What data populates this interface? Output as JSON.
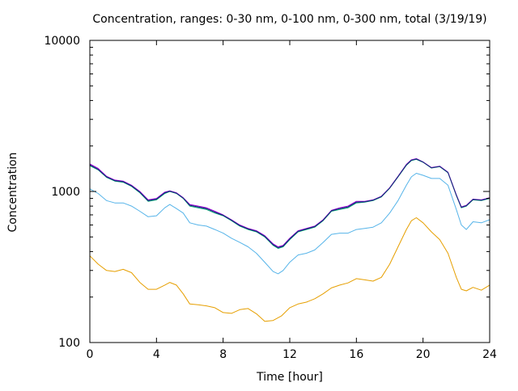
{
  "chart_data": {
    "type": "line",
    "title": "Concentration, ranges: 0-30 nm, 0-100 nm, 0-300 nm, total (3/19/19)",
    "xlabel": "Time [hour]",
    "ylabel": "Concentration",
    "xlim": [
      0,
      24
    ],
    "ylim": [
      100,
      10000
    ],
    "yscale": "log",
    "xticks": [
      0,
      4,
      8,
      12,
      16,
      20,
      24
    ],
    "yticks": [
      100,
      1000,
      10000
    ],
    "grid": false,
    "legend": "none",
    "series": [
      {
        "color": "#e69f00",
        "x": [
          0,
          0.5,
          1,
          1.5,
          2,
          2.5,
          3,
          3.5,
          4,
          4.5,
          4.8,
          5.2,
          5.6,
          6,
          6.5,
          7,
          7.5,
          8,
          8.5,
          9,
          9.5,
          10,
          10.5,
          11,
          11.5,
          12,
          12.5,
          13,
          13.5,
          14,
          14.5,
          15,
          15.5,
          16,
          16.5,
          17,
          17.5,
          18,
          18.5,
          19,
          19.3,
          19.6,
          20,
          20.5,
          21,
          21.5,
          22,
          22.3,
          22.6,
          23,
          23.5,
          24
        ],
        "values": [
          375,
          330,
          300,
          295,
          305,
          290,
          250,
          225,
          225,
          240,
          250,
          240,
          210,
          180,
          178,
          175,
          170,
          158,
          156,
          165,
          168,
          155,
          138,
          140,
          150,
          170,
          180,
          185,
          195,
          210,
          230,
          240,
          248,
          265,
          260,
          255,
          270,
          330,
          430,
          560,
          640,
          670,
          620,
          540,
          480,
          390,
          270,
          225,
          220,
          232,
          222,
          240
        ]
      },
      {
        "color": "#56b4e9",
        "x": [
          0,
          0.5,
          1,
          1.5,
          2,
          2.5,
          3,
          3.5,
          4,
          4.5,
          4.8,
          5.2,
          5.6,
          6,
          6.5,
          7,
          7.5,
          8,
          8.5,
          9,
          9.5,
          10,
          10.5,
          11,
          11.3,
          11.6,
          12,
          12.5,
          13,
          13.5,
          14,
          14.5,
          15,
          15.5,
          16,
          16.5,
          17,
          17.5,
          18,
          18.5,
          19,
          19.3,
          19.6,
          20,
          20.5,
          21,
          21.5,
          22,
          22.3,
          22.6,
          23,
          23.5,
          24
        ],
        "values": [
          1040,
          970,
          870,
          840,
          840,
          800,
          740,
          680,
          690,
          780,
          820,
          770,
          720,
          620,
          600,
          590,
          560,
          530,
          490,
          460,
          430,
          390,
          340,
          295,
          285,
          300,
          340,
          380,
          390,
          410,
          460,
          520,
          530,
          530,
          560,
          570,
          580,
          620,
          720,
          870,
          1100,
          1250,
          1320,
          1280,
          1220,
          1220,
          1100,
          760,
          600,
          560,
          630,
          620,
          650
        ]
      },
      {
        "color": "#009e73",
        "x": [
          0,
          0.5,
          1,
          1.5,
          2,
          2.5,
          3,
          3.5,
          4,
          4.5,
          4.8,
          5.2,
          5.6,
          6,
          6.5,
          7,
          7.5,
          8,
          8.5,
          9,
          9.5,
          10,
          10.5,
          11,
          11.3,
          11.6,
          12,
          12.5,
          13,
          13.5,
          14,
          14.5,
          15,
          15.5,
          16,
          16.5,
          17,
          17.5,
          18,
          18.5,
          19,
          19.3,
          19.6,
          20,
          20.5,
          21,
          21.5,
          22,
          22.3,
          22.6,
          23,
          23.5,
          24
        ],
        "values": [
          1480,
          1390,
          1240,
          1170,
          1150,
          1080,
          980,
          860,
          880,
          970,
          1000,
          970,
          900,
          800,
          780,
          760,
          720,
          690,
          640,
          590,
          560,
          540,
          500,
          440,
          420,
          430,
          480,
          540,
          560,
          580,
          640,
          740,
          760,
          780,
          840,
          850,
          870,
          920,
          1050,
          1250,
          1490,
          1600,
          1630,
          1560,
          1430,
          1460,
          1330,
          940,
          780,
          800,
          880,
          870,
          900
        ]
      },
      {
        "color": "#9400d3",
        "x": [
          0,
          0.5,
          1,
          1.5,
          2,
          2.5,
          3,
          3.5,
          4,
          4.5,
          4.8,
          5.2,
          5.6,
          6,
          6.5,
          7,
          7.5,
          8,
          8.5,
          9,
          9.5,
          10,
          10.5,
          11,
          11.3,
          11.6,
          12,
          12.5,
          13,
          13.5,
          14,
          14.5,
          15,
          15.5,
          16,
          16.5,
          17,
          17.5,
          18,
          18.5,
          19,
          19.3,
          19.6,
          20,
          20.5,
          21,
          21.5,
          22,
          22.3,
          22.6,
          23,
          23.5,
          24
        ],
        "values": [
          1520,
          1420,
          1260,
          1190,
          1170,
          1100,
          1000,
          880,
          900,
          990,
          1010,
          980,
          910,
          820,
          800,
          780,
          740,
          700,
          650,
          600,
          570,
          550,
          510,
          450,
          430,
          440,
          490,
          550,
          570,
          590,
          650,
          750,
          780,
          800,
          860,
          860,
          880,
          930,
          1060,
          1260,
          1510,
          1620,
          1650,
          1570,
          1440,
          1470,
          1340,
          950,
          790,
          810,
          890,
          880,
          910
        ]
      },
      {
        "color": "#1a237e",
        "x": [
          0,
          0.5,
          1,
          1.5,
          2,
          2.5,
          3,
          3.5,
          4,
          4.5,
          4.8,
          5.2,
          5.6,
          6,
          6.5,
          7,
          7.5,
          8,
          8.5,
          9,
          9.5,
          10,
          10.5,
          11,
          11.3,
          11.6,
          12,
          12.5,
          13,
          13.5,
          14,
          14.5,
          15,
          15.5,
          16,
          16.5,
          17,
          17.5,
          18,
          18.5,
          19,
          19.3,
          19.6,
          20,
          20.5,
          21,
          21.5,
          22,
          22.3,
          22.6,
          23,
          23.5,
          24
        ],
        "values": [
          1500,
          1400,
          1250,
          1180,
          1160,
          1090,
          990,
          870,
          890,
          980,
          1005,
          975,
          905,
          810,
          790,
          770,
          730,
          695,
          645,
          595,
          565,
          545,
          505,
          445,
          425,
          435,
          485,
          545,
          565,
          585,
          645,
          745,
          770,
          790,
          850,
          855,
          875,
          925,
          1055,
          1255,
          1500,
          1610,
          1640,
          1565,
          1435,
          1465,
          1335,
          945,
          785,
          805,
          885,
          875,
          905
        ]
      }
    ]
  }
}
